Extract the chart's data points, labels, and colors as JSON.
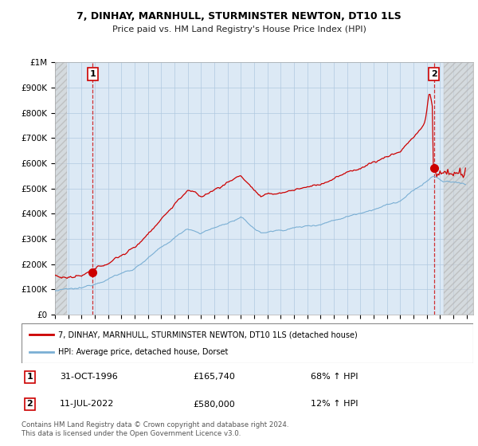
{
  "title": "7, DINHAY, MARNHULL, STURMINSTER NEWTON, DT10 1LS",
  "subtitle": "Price paid vs. HM Land Registry's House Price Index (HPI)",
  "legend_line1": "7, DINHAY, MARNHULL, STURMINSTER NEWTON, DT10 1LS (detached house)",
  "legend_line2": "HPI: Average price, detached house, Dorset",
  "annotation1_date": "31-OCT-1996",
  "annotation1_price": "£165,740",
  "annotation1_hpi": "68% ↑ HPI",
  "annotation2_date": "11-JUL-2022",
  "annotation2_price": "£580,000",
  "annotation2_hpi": "12% ↑ HPI",
  "footer": "Contains HM Land Registry data © Crown copyright and database right 2024.\nThis data is licensed under the Open Government Licence v3.0.",
  "sale_color": "#cc0000",
  "hpi_color": "#7aafd4",
  "dashed_color": "#cc0000",
  "annotation_box_color": "#cc0000",
  "plot_bg_color": "#dce9f5",
  "background_color": "#ffffff",
  "grid_color": "#b0c8e0",
  "hatch_color": "#c8c8c8",
  "ylim": [
    0,
    1000000
  ],
  "yticks": [
    0,
    100000,
    200000,
    300000,
    400000,
    500000,
    600000,
    700000,
    800000,
    900000,
    1000000
  ],
  "ytick_labels": [
    "£0",
    "£100K",
    "£200K",
    "£300K",
    "£400K",
    "£500K",
    "£600K",
    "£700K",
    "£800K",
    "£900K",
    "£1M"
  ],
  "xmin": 1994.0,
  "xmax": 2025.5,
  "sale1_x": 1996.83,
  "sale1_y": 165740,
  "sale2_x": 2022.53,
  "sale2_y": 580000,
  "hatch_left_end": 1994.92,
  "hatch_right_start": 2023.25
}
